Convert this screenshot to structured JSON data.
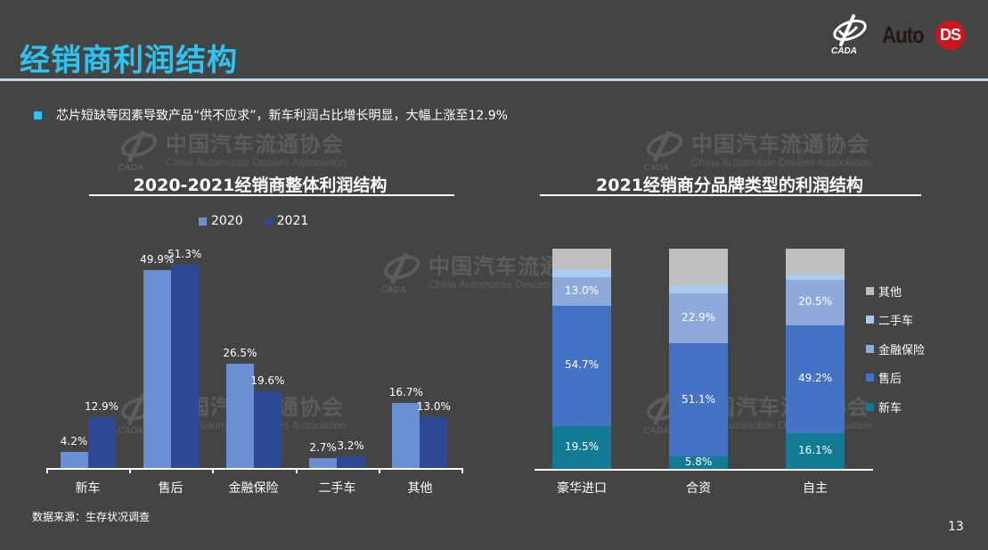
{
  "slide": {
    "title": "经销商利润结构",
    "bullet": "芯片短缺等因素导致产品“供不应求”，新车利润占比增长明显，大幅上涨至12.9%",
    "source": "数据来源：生存状况调查",
    "page_number": "13",
    "accent_color": "#2ec4f1"
  },
  "logos": {
    "cada_text": "CADA",
    "auto_text": "Auto",
    "ds_text": "DS"
  },
  "watermark": {
    "cn": "中国汽车流通协会",
    "en": "China Automobile Dealers Association"
  },
  "chart_data": [
    {
      "type": "bar",
      "title": "2020-2021经销商整体利润结构",
      "categories": [
        "新车",
        "售后",
        "金融保险",
        "二手车",
        "其他"
      ],
      "series": [
        {
          "name": "2020",
          "color": "#6a8fd3",
          "values": [
            4.2,
            49.9,
            26.5,
            2.7,
            16.7
          ],
          "labels": [
            "4.2%",
            "49.9%",
            "26.5%",
            "2.7%",
            "16.7%"
          ]
        },
        {
          "name": "2021",
          "color": "#2b4a93",
          "values": [
            12.9,
            51.3,
            19.6,
            3.2,
            13.0
          ],
          "labels": [
            "12.9%",
            "51.3%",
            "19.6%",
            "3.2%",
            "13.0%"
          ]
        }
      ],
      "unit": "%",
      "legend_position": "top",
      "grid": false,
      "ylim": [
        0,
        55
      ]
    },
    {
      "type": "bar",
      "stacked": true,
      "title": "2021经销商分品牌类型的利润结构",
      "categories": [
        "豪华进口",
        "合资",
        "自主"
      ],
      "series": [
        {
          "name": "新车",
          "color": "#127a92",
          "values": [
            19.5,
            5.8,
            16.1
          ],
          "labels": [
            "19.5%",
            "5.8%",
            "16.1%"
          ]
        },
        {
          "name": "售后",
          "color": "#4472c4",
          "values": [
            54.7,
            51.1,
            49.2
          ],
          "labels": [
            "54.7%",
            "51.1%",
            "49.2%"
          ]
        },
        {
          "name": "金融保险",
          "color": "#8eaadb",
          "values": [
            13.0,
            22.9,
            20.5
          ],
          "labels": [
            "13.0%",
            "22.9%",
            "20.5%"
          ]
        },
        {
          "name": "二手车",
          "color": "#a9cbf0",
          "values": [
            3.5,
            3.6,
            2.5
          ],
          "labels": [
            "",
            "",
            ""
          ]
        },
        {
          "name": "其他",
          "color": "#bfbfbf",
          "values": [
            9.3,
            16.6,
            11.7
          ],
          "labels": [
            "",
            "",
            ""
          ]
        }
      ],
      "legend_order": [
        "其他",
        "二手车",
        "金融保险",
        "售后",
        "新车"
      ],
      "unit": "%",
      "legend_position": "right",
      "grid": false,
      "ylim": [
        0,
        100
      ]
    }
  ]
}
